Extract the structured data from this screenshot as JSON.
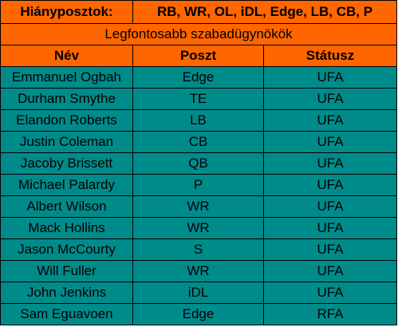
{
  "needs": {
    "label": "Hiányposztok:",
    "value": "RB, WR, OL, iDL, Edge, LB, CB, P"
  },
  "section_title": "Legfontosabb szabadügynökök",
  "columns": [
    "Név",
    "Poszt",
    "Státusz"
  ],
  "rows": [
    {
      "name": "Emmanuel Ogbah",
      "pos": "Edge",
      "status": "UFA"
    },
    {
      "name": "Durham Smythe",
      "pos": "TE",
      "status": "UFA"
    },
    {
      "name": "Elandon Roberts",
      "pos": "LB",
      "status": "UFA"
    },
    {
      "name": "Justin Coleman",
      "pos": "CB",
      "status": "UFA"
    },
    {
      "name": "Jacoby Brissett",
      "pos": "QB",
      "status": "UFA"
    },
    {
      "name": "Michael Palardy",
      "pos": "P",
      "status": "UFA"
    },
    {
      "name": "Albert Wilson",
      "pos": "WR",
      "status": "UFA"
    },
    {
      "name": "Mack Hollins",
      "pos": "WR",
      "status": "UFA"
    },
    {
      "name": "Jason McCourty",
      "pos": "S",
      "status": "UFA"
    },
    {
      "name": "Will Fuller",
      "pos": "WR",
      "status": "UFA"
    },
    {
      "name": "John Jenkins",
      "pos": "iDL",
      "status": "UFA"
    },
    {
      "name": "Sam Eguavoen",
      "pos": "Edge",
      "status": "RFA"
    }
  ],
  "colors": {
    "header_bg": "#ff6600",
    "body_bg": "#008b8b",
    "border": "#000000"
  }
}
